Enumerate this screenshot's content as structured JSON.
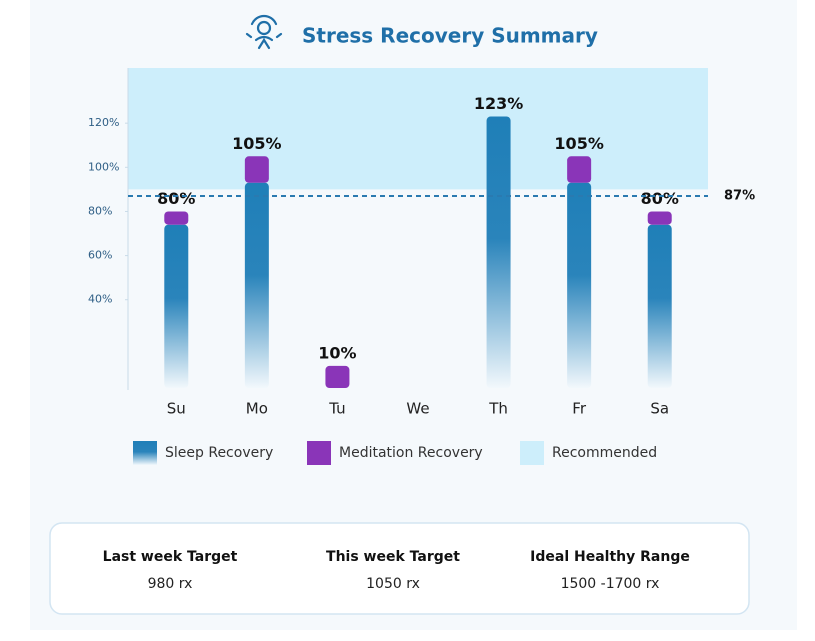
{
  "chart_data": {
    "type": "stacked-bar",
    "title": "Stress Recovery Summary",
    "categories": [
      "Su",
      "Mo",
      "Tu",
      "We",
      "Th",
      "Fr",
      "Sa"
    ],
    "series": [
      {
        "name": "Sleep Recovery",
        "color": "#1f7fb8",
        "values": [
          74,
          93,
          null,
          null,
          123,
          93,
          74
        ]
      },
      {
        "name": "Meditation Recovery",
        "color": "#8a35b8",
        "values": [
          6,
          12,
          10,
          null,
          null,
          12,
          6
        ]
      }
    ],
    "totals": [
      80,
      105,
      10,
      null,
      123,
      105,
      80
    ],
    "value_labels": [
      "80%",
      "105%",
      "10%",
      null,
      "123%",
      "105%",
      "80%"
    ],
    "band": {
      "name": "Recommended",
      "color": "#cdeefb",
      "from": 90
    },
    "reference": {
      "value": 87,
      "label": "87%"
    },
    "ylim": [
      0,
      145
    ],
    "yticks": [
      {
        "value": 40,
        "label": "40%"
      },
      {
        "value": 60,
        "label": "60%"
      },
      {
        "value": 80,
        "label": "80%"
      },
      {
        "value": 100,
        "label": "100%"
      },
      {
        "value": 120,
        "label": "120%"
      }
    ]
  },
  "summary": [
    {
      "title": "Last week Target",
      "value": "980 rx"
    },
    {
      "title": "This week Target",
      "value": "1050 rx"
    },
    {
      "title": "Ideal Healthy Range",
      "value": "1500 -1700 rx"
    }
  ]
}
